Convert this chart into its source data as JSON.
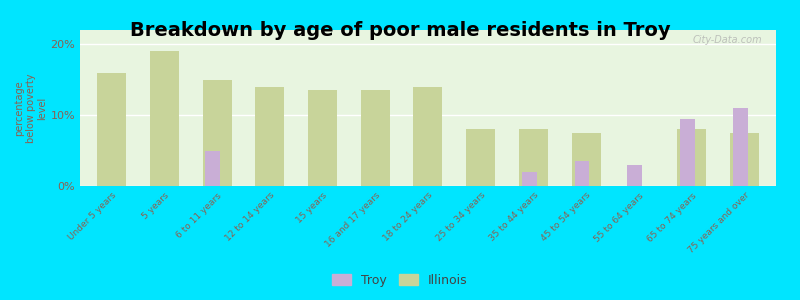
{
  "title": "Breakdown by age of poor male residents in Troy",
  "ylabel": "percentage\nbelow poverty\nlevel",
  "categories": [
    "Under 5 years",
    "5 years",
    "6 to 11 years",
    "12 to 14 years",
    "15 years",
    "16 and 17 years",
    "18 to 24 years",
    "25 to 34 years",
    "35 to 44 years",
    "45 to 54 years",
    "55 to 64 years",
    "65 to 74 years",
    "75 years and over"
  ],
  "troy_values": [
    null,
    null,
    5.0,
    null,
    null,
    null,
    null,
    null,
    2.0,
    3.5,
    3.0,
    9.5,
    11.0
  ],
  "illinois_values": [
    16.0,
    19.0,
    15.0,
    14.0,
    13.5,
    13.5,
    14.0,
    8.0,
    8.0,
    7.5,
    null,
    8.0,
    7.5
  ],
  "troy_color": "#c9aed6",
  "illinois_color": "#c8d49a",
  "outer_bg_color": "#00e5ff",
  "plot_bg_top": "#f5faf0",
  "plot_bg_bottom": "#e8f5e0",
  "ylim": [
    0,
    22
  ],
  "yticks": [
    0,
    10,
    20
  ],
  "ytick_labels": [
    "0%",
    "10%",
    "20%"
  ],
  "il_bar_width": 0.55,
  "troy_bar_width": 0.28,
  "title_fontsize": 14,
  "legend_labels": [
    "Troy",
    "Illinois"
  ],
  "watermark": "City-Data.com",
  "tick_color": "#8B6050",
  "label_color": "#8B6050"
}
